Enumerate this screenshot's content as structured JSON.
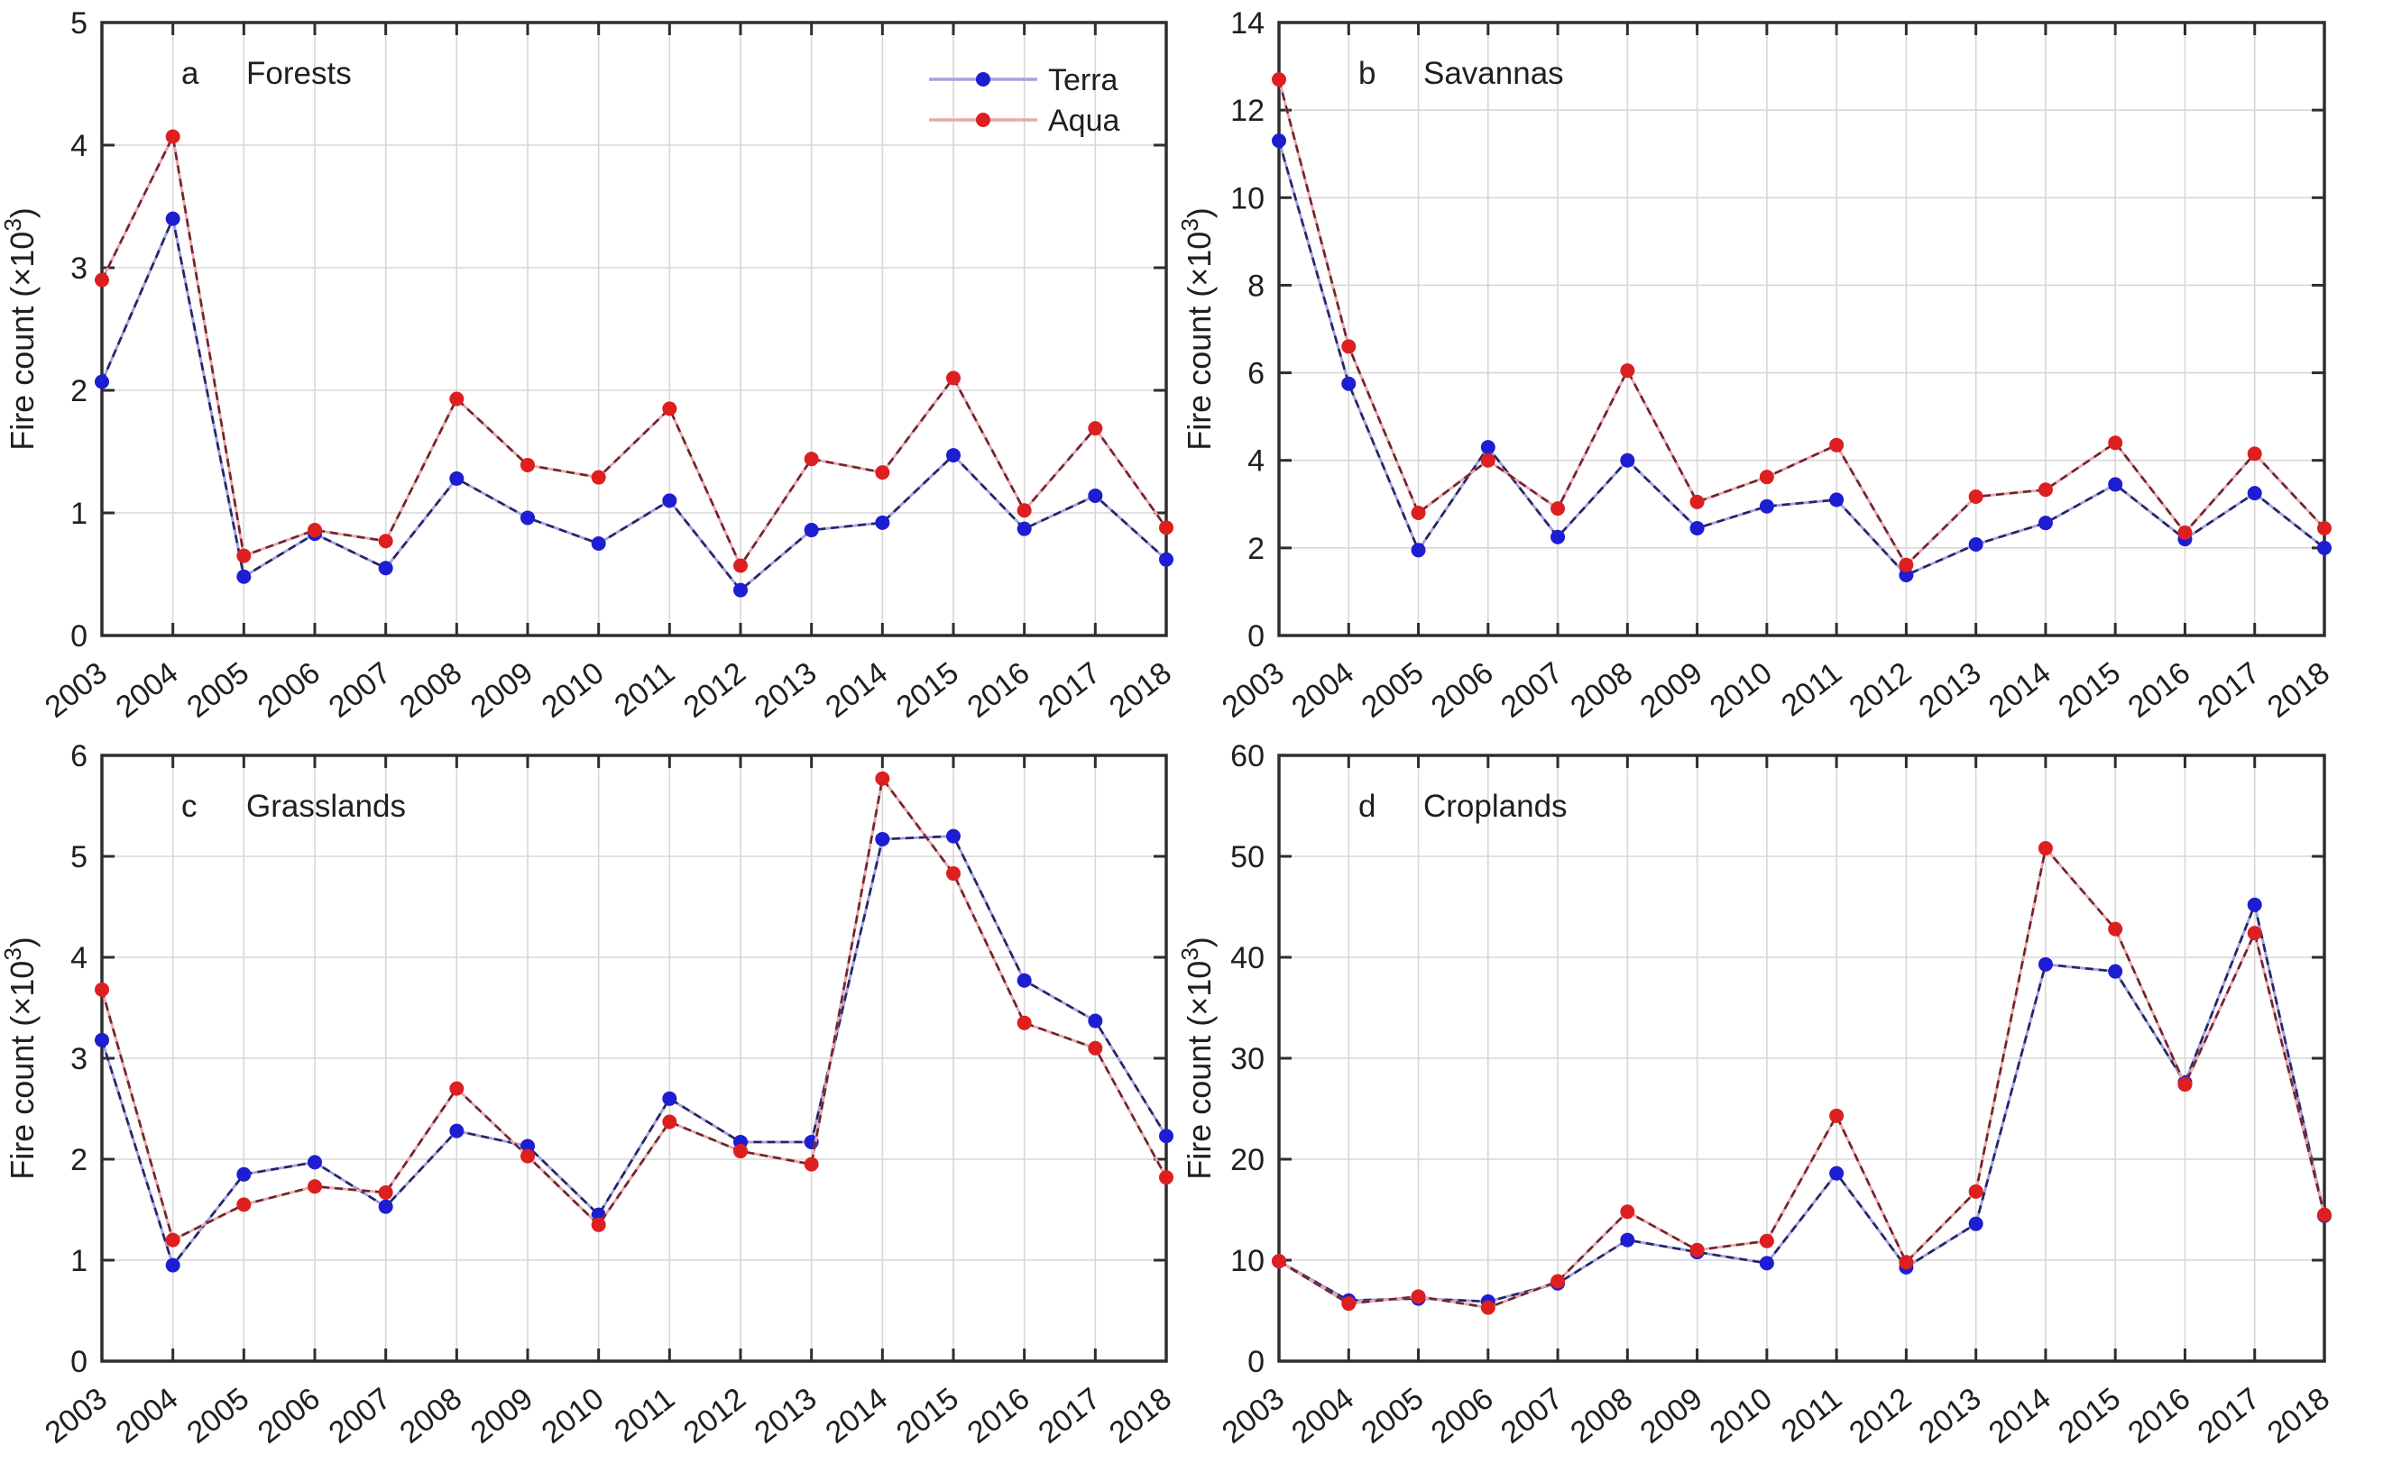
{
  "figure": {
    "background": "#ffffff",
    "text_color": "#1f1f1f",
    "axis_color": "#2e2e2e",
    "grid_color": "#d7d7d7",
    "legend": {
      "position": "top-right-of-panel-a",
      "entries": [
        {
          "label": "Terra",
          "series": "terra"
        },
        {
          "label": "Aqua",
          "series": "aqua"
        }
      ]
    },
    "colors": {
      "terra": {
        "marker": "#1d1dd2",
        "dash": "#252563",
        "halo": "#a4a4e0"
      },
      "aqua": {
        "marker": "#de1f1f",
        "dash": "#6e2430",
        "halo": "#e9aaaa"
      }
    }
  },
  "chart_data": [
    {
      "type": "line",
      "panel_letter": "a",
      "title": "Forests",
      "ylabel": "Fire count (×10³)",
      "xlabel": "",
      "grid": true,
      "legend": true,
      "x": [
        2003,
        2004,
        2005,
        2006,
        2007,
        2008,
        2009,
        2010,
        2011,
        2012,
        2013,
        2014,
        2015,
        2016,
        2017,
        2018
      ],
      "xlim": [
        2003,
        2018
      ],
      "ylim": [
        0,
        5
      ],
      "yticks": [
        0,
        1,
        2,
        3,
        4,
        5
      ],
      "series": [
        {
          "name": "Terra",
          "key": "terra",
          "values": [
            2.07,
            3.4,
            0.48,
            0.83,
            0.55,
            1.28,
            0.96,
            0.75,
            1.1,
            0.37,
            0.86,
            0.92,
            1.47,
            0.87,
            1.14,
            0.62
          ]
        },
        {
          "name": "Aqua",
          "key": "aqua",
          "values": [
            2.9,
            4.07,
            0.65,
            0.86,
            0.77,
            1.93,
            1.39,
            1.29,
            1.85,
            0.57,
            1.44,
            1.33,
            2.1,
            1.02,
            1.69,
            0.88
          ]
        }
      ]
    },
    {
      "type": "line",
      "panel_letter": "b",
      "title": "Savannas",
      "ylabel": "Fire count (×10³)",
      "xlabel": "",
      "grid": true,
      "legend": false,
      "x": [
        2003,
        2004,
        2005,
        2006,
        2007,
        2008,
        2009,
        2010,
        2011,
        2012,
        2013,
        2014,
        2015,
        2016,
        2017,
        2018
      ],
      "xlim": [
        2003,
        2018
      ],
      "ylim": [
        0,
        14
      ],
      "yticks": [
        0,
        2,
        4,
        6,
        8,
        10,
        12,
        14
      ],
      "series": [
        {
          "name": "Terra",
          "key": "terra",
          "values": [
            11.3,
            5.75,
            1.95,
            4.3,
            2.25,
            4.0,
            2.45,
            2.95,
            3.1,
            1.38,
            2.08,
            2.57,
            3.45,
            2.2,
            3.25,
            2.0
          ]
        },
        {
          "name": "Aqua",
          "key": "aqua",
          "values": [
            12.7,
            6.6,
            2.8,
            4.0,
            2.9,
            6.05,
            3.05,
            3.62,
            4.35,
            1.61,
            3.17,
            3.33,
            4.4,
            2.35,
            4.15,
            2.45
          ]
        }
      ]
    },
    {
      "type": "line",
      "panel_letter": "c",
      "title": "Grasslands",
      "ylabel": "Fire count (×10³)",
      "xlabel": "",
      "grid": true,
      "legend": false,
      "x": [
        2003,
        2004,
        2005,
        2006,
        2007,
        2008,
        2009,
        2010,
        2011,
        2012,
        2013,
        2014,
        2015,
        2016,
        2017,
        2018
      ],
      "xlim": [
        2003,
        2018
      ],
      "ylim": [
        0,
        6
      ],
      "yticks": [
        0,
        1,
        2,
        3,
        4,
        5,
        6
      ],
      "series": [
        {
          "name": "Terra",
          "key": "terra",
          "values": [
            3.18,
            0.95,
            1.85,
            1.97,
            1.53,
            2.28,
            2.13,
            1.45,
            2.6,
            2.17,
            2.17,
            5.17,
            5.2,
            3.77,
            3.37,
            2.23
          ]
        },
        {
          "name": "Aqua",
          "key": "aqua",
          "values": [
            3.68,
            1.2,
            1.55,
            1.73,
            1.67,
            2.7,
            2.03,
            1.35,
            2.37,
            2.08,
            1.95,
            5.77,
            4.83,
            3.35,
            3.1,
            1.82
          ]
        }
      ]
    },
    {
      "type": "line",
      "panel_letter": "d",
      "title": "Croplands",
      "ylabel": "Fire count (×10³)",
      "xlabel": "",
      "grid": true,
      "legend": false,
      "x": [
        2003,
        2004,
        2005,
        2006,
        2007,
        2008,
        2009,
        2010,
        2011,
        2012,
        2013,
        2014,
        2015,
        2016,
        2017,
        2018
      ],
      "xlim": [
        2003,
        2018
      ],
      "ylim": [
        0,
        60
      ],
      "yticks": [
        0,
        10,
        20,
        30,
        40,
        50,
        60
      ],
      "series": [
        {
          "name": "Terra",
          "key": "terra",
          "values": [
            9.9,
            6.0,
            6.2,
            5.9,
            7.7,
            12.0,
            10.8,
            9.7,
            18.6,
            9.3,
            13.6,
            39.3,
            38.6,
            27.6,
            45.2,
            14.4
          ]
        },
        {
          "name": "Aqua",
          "key": "aqua",
          "values": [
            9.9,
            5.7,
            6.4,
            5.3,
            7.9,
            14.8,
            11.0,
            11.9,
            24.3,
            9.8,
            16.8,
            50.8,
            42.8,
            27.4,
            42.4,
            14.5
          ]
        }
      ]
    }
  ]
}
